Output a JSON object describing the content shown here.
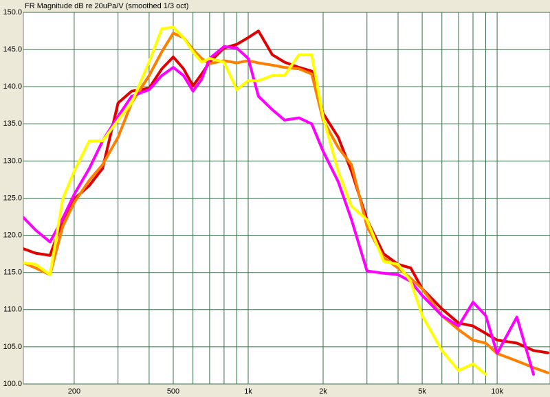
{
  "chart_data": {
    "type": "line",
    "title": "FR Magnitude dB re 20uPa/V (smoothed 1/3 oct)",
    "log_x": true,
    "grid": true,
    "x": [
      125,
      140,
      160,
      180,
      200,
      230,
      260,
      300,
      340,
      400,
      450,
      500,
      550,
      600,
      650,
      700,
      800,
      900,
      1000,
      1100,
      1250,
      1400,
      1600,
      1800,
      2000,
      2300,
      2600,
      3000,
      3500,
      4000,
      4500,
      5000,
      6000,
      7000,
      8000,
      9000,
      10000,
      12000,
      14000,
      16000
    ],
    "series": [
      {
        "color": "#e00000",
        "values": [
          118.2,
          117.6,
          117.3,
          122.1,
          124.9,
          126.7,
          129.0,
          137.8,
          139.4,
          139.8,
          142.4,
          144.0,
          142.4,
          140.1,
          141.7,
          143.3,
          145.2,
          145.7,
          146.6,
          147.5,
          144.3,
          143.3,
          142.6,
          142.1,
          136.4,
          133.2,
          128.6,
          122.1,
          117.5,
          116.1,
          115.6,
          112.8,
          110.1,
          108.2,
          107.8,
          106.8,
          105.9,
          105.5,
          104.5,
          104.2
        ]
      },
      {
        "color": "#ff8000",
        "values": [
          116.3,
          115.6,
          114.7,
          121.2,
          124.4,
          127.4,
          129.5,
          133.2,
          137.8,
          141.5,
          144.7,
          147.2,
          146.6,
          145.0,
          143.8,
          143.1,
          143.5,
          143.2,
          143.5,
          143.2,
          142.9,
          142.6,
          142.4,
          141.7,
          135.5,
          131.8,
          129.5,
          121.2,
          117.0,
          115.6,
          114.2,
          112.8,
          109.2,
          107.3,
          105.9,
          105.5,
          104.1,
          103.1,
          102.2,
          101.5
        ]
      },
      {
        "color": "#ff00ff",
        "values": [
          122.4,
          120.7,
          119.1,
          122.3,
          125.5,
          129.0,
          132.7,
          136.0,
          138.7,
          139.6,
          141.5,
          142.6,
          141.5,
          139.4,
          141.0,
          143.8,
          145.4,
          145.2,
          143.8,
          138.7,
          136.9,
          135.5,
          135.8,
          135.0,
          131.3,
          127.2,
          122.1,
          115.2,
          114.9,
          114.7,
          113.8,
          111.9,
          109.2,
          107.8,
          111.0,
          109.2,
          104.1,
          109.0,
          101.3,
          null
        ]
      },
      {
        "color": "#ffff00",
        "values": [
          116.3,
          116.1,
          114.7,
          124.9,
          128.6,
          132.7,
          132.7,
          135.5,
          137.8,
          143.3,
          147.8,
          148.0,
          146.6,
          144.7,
          143.3,
          143.8,
          143.3,
          139.6,
          140.8,
          140.8,
          141.5,
          141.5,
          144.3,
          144.3,
          135.9,
          128.6,
          123.9,
          122.1,
          116.5,
          116.1,
          113.8,
          109.2,
          104.5,
          101.8,
          102.7,
          101.3,
          null,
          null,
          null,
          null
        ]
      }
    ],
    "xlim": [
      125,
      16000
    ],
    "xticks": [
      200,
      500,
      {
        "value": 1000,
        "label": "1k"
      },
      {
        "value": 2000,
        "label": "2k"
      },
      {
        "value": 5000,
        "label": "5k"
      },
      {
        "value": 10000,
        "label": "10k"
      }
    ],
    "xminor": [
      300,
      400,
      600,
      700,
      800,
      900,
      3000,
      4000,
      6000,
      7000,
      8000,
      9000
    ],
    "ylim": [
      100,
      150
    ],
    "yticks": [
      {
        "value": 100,
        "label": "100.0"
      },
      {
        "value": 105,
        "label": "105.0"
      },
      {
        "value": 110,
        "label": "110.0"
      },
      {
        "value": 115,
        "label": "115.0"
      },
      {
        "value": 120,
        "label": "120.0"
      },
      {
        "value": 125,
        "label": "125.0"
      },
      {
        "value": 130,
        "label": "130.0"
      },
      {
        "value": 135,
        "label": "135.0"
      },
      {
        "value": 140,
        "label": "140.0"
      },
      {
        "value": 145,
        "label": "145.0"
      },
      {
        "value": 150,
        "label": "150.0"
      }
    ]
  }
}
